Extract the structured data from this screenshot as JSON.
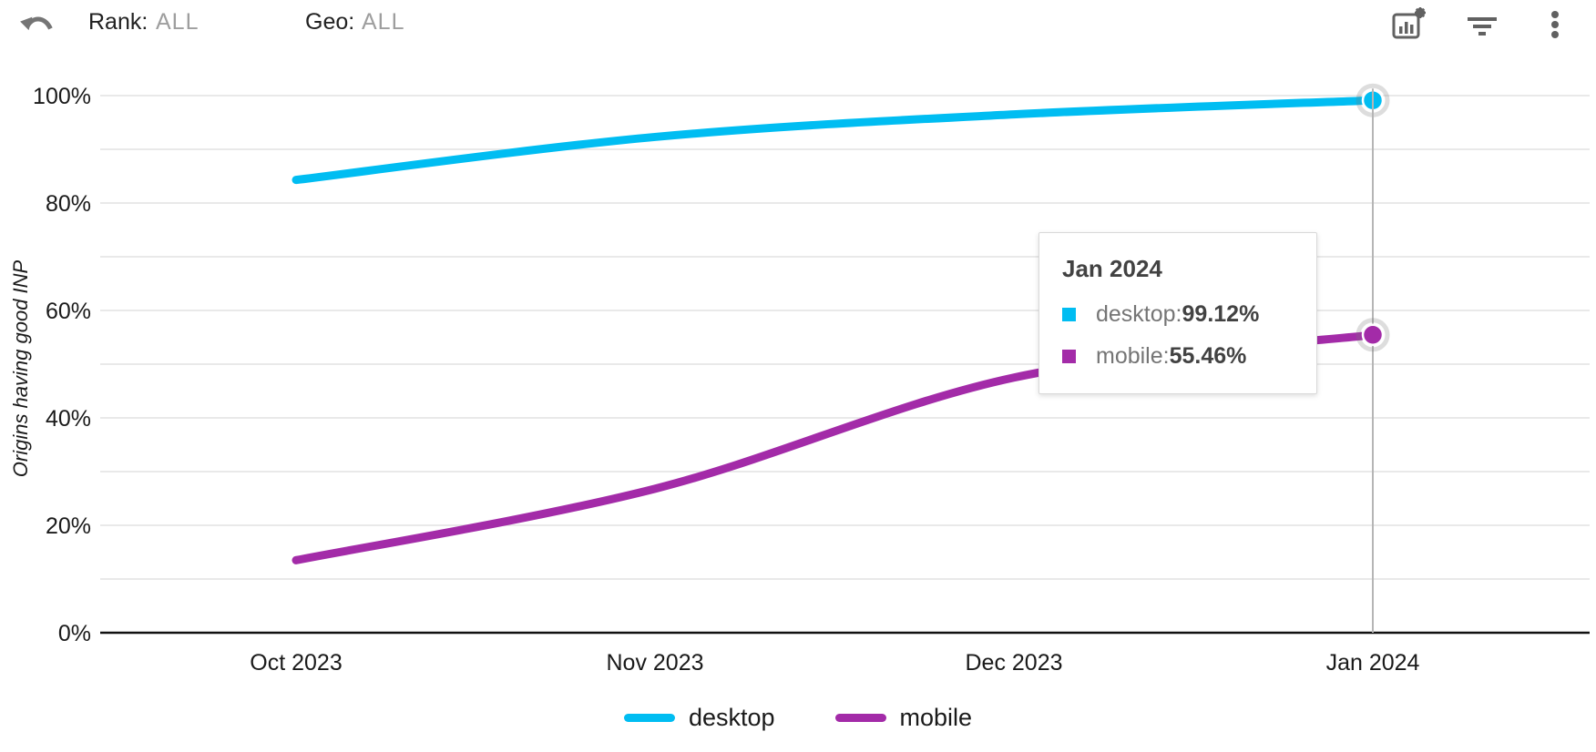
{
  "header": {
    "rank_label": "Rank:",
    "rank_value": "ALL",
    "geo_label": "Geo:",
    "geo_value": "ALL"
  },
  "chart_data": {
    "type": "line",
    "ylabel": "Origins having good INP",
    "categories": [
      "Oct 2023",
      "Nov 2023",
      "Dec 2023",
      "Jan 2024"
    ],
    "y_tick_labels": [
      "0%",
      "20%",
      "40%",
      "60%",
      "80%",
      "100%"
    ],
    "ylim": [
      0,
      100
    ],
    "grid": "horizontal every 10%",
    "legend_position": "bottom",
    "highlight_index": 3,
    "series": [
      {
        "name": "desktop",
        "color": "#00bdf2",
        "values": [
          84.3,
          92.3,
          96.5,
          99.12
        ]
      },
      {
        "name": "mobile",
        "color": "#a32ba8",
        "values": [
          13.5,
          26.8,
          47.5,
          55.46
        ]
      }
    ]
  },
  "tooltip": {
    "title": "Jan 2024",
    "rows": [
      {
        "label": "desktop: ",
        "value": "99.12%",
        "color": "#00bdf2"
      },
      {
        "label": "mobile: ",
        "value": "55.46%",
        "color": "#a32ba8"
      }
    ]
  },
  "legend": [
    {
      "label": "desktop",
      "color": "#00bdf2"
    },
    {
      "label": "mobile",
      "color": "#a32ba8"
    }
  ],
  "colors": {
    "gridline": "#e2e2e2",
    "axis": "#111111",
    "crosshair": "#b5b5b5",
    "icons": "#616161",
    "tick_text": "#1a1a1a"
  }
}
